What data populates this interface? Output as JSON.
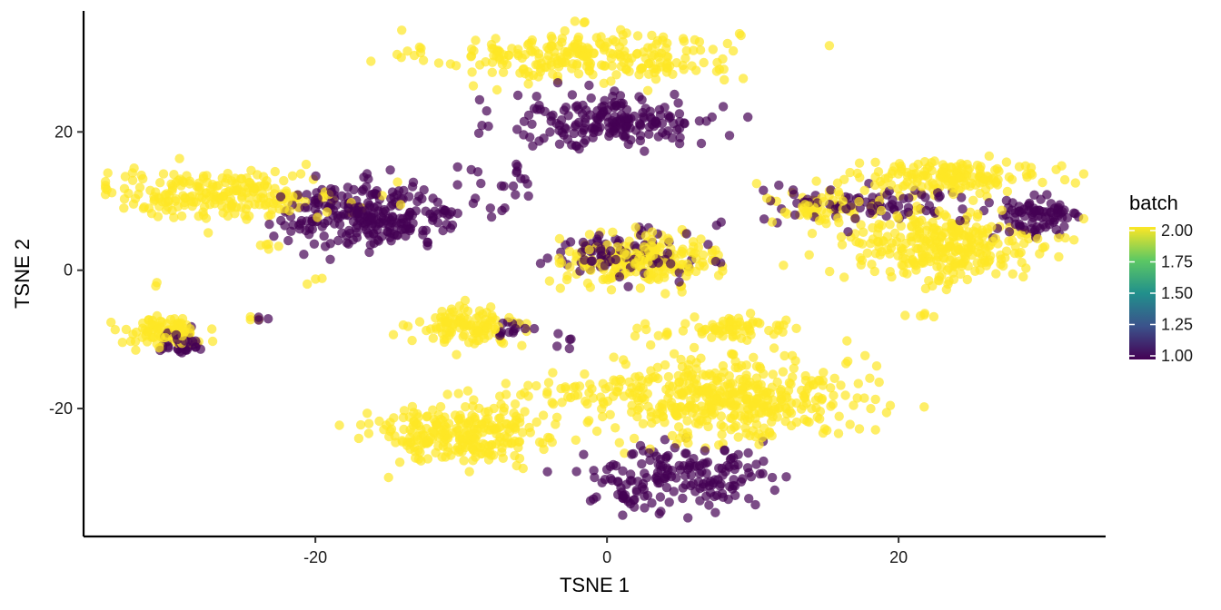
{
  "chart_data": {
    "type": "scatter",
    "title": "",
    "xlabel": "TSNE 1",
    "ylabel": "TSNE 2",
    "xlim": [
      -35.9,
      34.2
    ],
    "ylim": [
      -38.5,
      37.5
    ],
    "x_ticks": [
      -20,
      0,
      20
    ],
    "y_ticks": [
      -20,
      0,
      20
    ],
    "x_tick_labels": [
      "-20",
      "0",
      "20"
    ],
    "y_tick_labels": [
      "-20",
      "0",
      "20"
    ],
    "grid": false,
    "legend": {
      "title": "batch",
      "placement": "right",
      "type": "colorbar",
      "range": [
        1.0,
        2.0
      ],
      "breaks": [
        2.0,
        1.75,
        1.5,
        1.25,
        1.0
      ],
      "labels": [
        "2.00",
        "1.75",
        "1.50",
        "1.25",
        "1.00"
      ]
    },
    "color_scale": [
      "#440154",
      "#3b528b",
      "#21908c",
      "#5dc863",
      "#fde725"
    ],
    "point_opacity": 0.7,
    "clusters": [
      {
        "batch": 2,
        "cx": -1.5,
        "cy": 31,
        "sx": 5.2,
        "sy": 1.9,
        "n": 260
      },
      {
        "batch": 1,
        "cx": 0.5,
        "cy": 21.5,
        "sx": 3.6,
        "sy": 2.0,
        "n": 190
      },
      {
        "batch": 2,
        "cx": -26.5,
        "cy": 11,
        "sx": 4.2,
        "sy": 1.7,
        "n": 230
      },
      {
        "batch": 1,
        "cx": -16,
        "cy": 8,
        "sx": 3.1,
        "sy": 2.3,
        "n": 260
      },
      {
        "batch": 1,
        "cx": -6.5,
        "cy": 11.5,
        "sx": 0.8,
        "sy": 2.2,
        "n": 14
      },
      {
        "batch": 1,
        "cx": 0.5,
        "cy": 2.2,
        "sx": 2.5,
        "sy": 1.7,
        "n": 90
      },
      {
        "batch": 2,
        "cx": 2.5,
        "cy": 1.5,
        "sx": 2.6,
        "sy": 1.8,
        "n": 210
      },
      {
        "batch": 1,
        "cx": 18.5,
        "cy": 9.5,
        "sx": 4.0,
        "sy": 1.3,
        "n": 80
      },
      {
        "batch": 2,
        "cx": 15,
        "cy": 8.8,
        "sx": 1.9,
        "sy": 1.3,
        "n": 60
      },
      {
        "batch": 2,
        "cx": 23.5,
        "cy": 13.5,
        "sx": 3.2,
        "sy": 1.1,
        "n": 160
      },
      {
        "batch": 2,
        "cx": 23,
        "cy": 3.5,
        "sx": 3.4,
        "sy": 2.8,
        "n": 300
      },
      {
        "batch": 1,
        "cx": 29.5,
        "cy": 7.5,
        "sx": 1.6,
        "sy": 1.6,
        "n": 80
      },
      {
        "batch": 2,
        "cx": -30.5,
        "cy": -9,
        "sx": 1.3,
        "sy": 1.1,
        "n": 90
      },
      {
        "batch": 1,
        "cx": -29.5,
        "cy": -10.5,
        "sx": 1.0,
        "sy": 0.9,
        "n": 35
      },
      {
        "batch": 2,
        "cx": -9.5,
        "cy": -8,
        "sx": 1.7,
        "sy": 1.3,
        "n": 110
      },
      {
        "batch": 1,
        "cx": -7,
        "cy": -8.8,
        "sx": 0.9,
        "sy": 0.8,
        "n": 14
      },
      {
        "batch": 2,
        "cx": 8.5,
        "cy": -8.5,
        "sx": 2.6,
        "sy": 0.8,
        "n": 70
      },
      {
        "batch": 2,
        "cx": 8.5,
        "cy": -18.5,
        "sx": 4.2,
        "sy": 3.0,
        "n": 430
      },
      {
        "batch": 2,
        "cx": -10,
        "cy": -23.5,
        "sx": 3.0,
        "sy": 2.2,
        "n": 260
      },
      {
        "batch": 2,
        "cx": -2,
        "cy": -17.5,
        "sx": 2.6,
        "sy": 1.3,
        "n": 45
      },
      {
        "batch": 1,
        "cx": 4.5,
        "cy": -30,
        "sx": 3.1,
        "sy": 2.4,
        "n": 180
      },
      {
        "batch": 2,
        "cx": -23.5,
        "cy": 3.5,
        "sx": 0.7,
        "sy": 0.3,
        "n": 5
      },
      {
        "batch": 2,
        "cx": -20,
        "cy": -1,
        "sx": 0.3,
        "sy": 0.5,
        "n": 3
      },
      {
        "batch": 1,
        "cx": -23.5,
        "cy": -7,
        "sx": 0.3,
        "sy": 0.2,
        "n": 3
      },
      {
        "batch": 2,
        "cx": -24,
        "cy": -7,
        "sx": 0.3,
        "sy": 0.2,
        "n": 3
      },
      {
        "batch": 1,
        "cx": -9.5,
        "cy": 14.5,
        "sx": 0.9,
        "sy": 0.8,
        "n": 4
      },
      {
        "batch": 1,
        "cx": -3,
        "cy": -10,
        "sx": 0.5,
        "sy": 0.8,
        "n": 5
      },
      {
        "batch": 2,
        "cx": 21,
        "cy": -6.5,
        "sx": 0.6,
        "sy": 0.3,
        "n": 5
      },
      {
        "batch": 2,
        "cx": -31,
        "cy": -2,
        "sx": 0.2,
        "sy": 0.2,
        "n": 2
      },
      {
        "batch": 1,
        "cx": 7.5,
        "cy": 6.5,
        "sx": 0.5,
        "sy": 0.3,
        "n": 2
      },
      {
        "batch": 2,
        "cx": 19,
        "cy": 15,
        "sx": 0.3,
        "sy": 0.3,
        "n": 2
      }
    ]
  }
}
